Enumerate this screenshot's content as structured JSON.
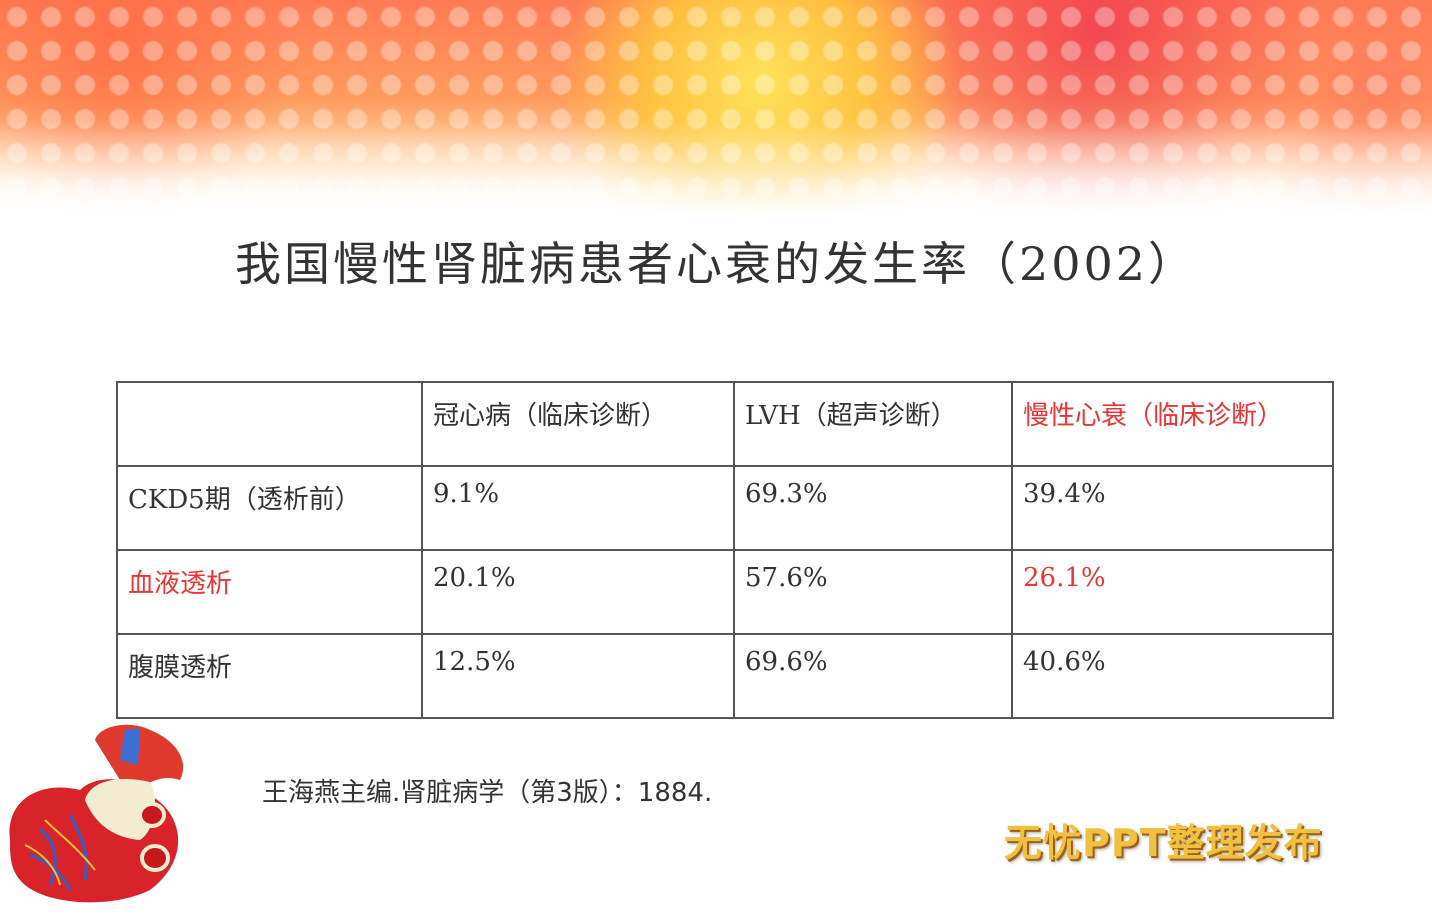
{
  "title": "我国慢性肾脏病患者心衰的发生率（2002）",
  "table": {
    "headers": [
      "",
      "冠心病（临床诊断）",
      "LVH（超声诊断）",
      "慢性心衰（临床诊断）"
    ],
    "rows": [
      [
        "CKD5期（透析前）",
        "9.1%",
        "69.3%",
        "39.4%"
      ],
      [
        "血液透析",
        "20.1%",
        "57.6%",
        "26.1%"
      ],
      [
        "腹膜透析",
        "12.5%",
        "69.6%",
        "40.6%"
      ]
    ],
    "highlight_color": "#ee3333"
  },
  "citation": "王海燕主编.肾脏病学（第3版）：1884.",
  "watermark": "无忧PPT整理发布",
  "images": {
    "banner": "orange-yellow-bokeh-banner",
    "heart": "anatomical-heart-model"
  }
}
